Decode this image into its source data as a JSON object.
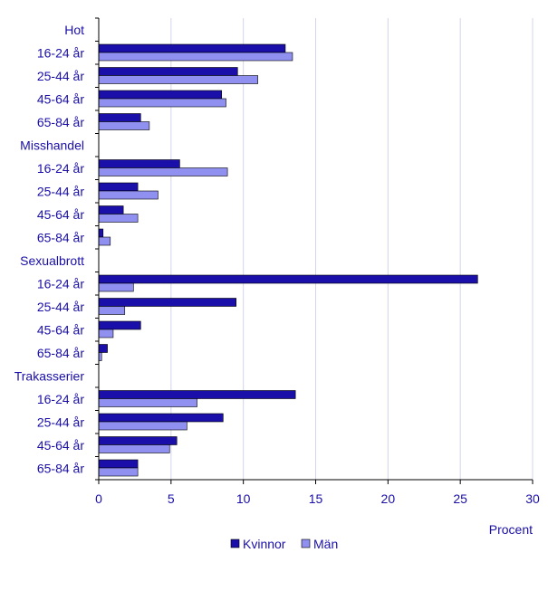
{
  "chart_data": {
    "type": "bar",
    "orientation": "horizontal",
    "categories": [
      "Hot",
      "16-24 år",
      "25-44 år",
      "45-64 år",
      "65-84 år",
      "Misshandel",
      "16-24 år",
      "25-44 år",
      "45-64 år",
      "65-84 år",
      "Sexualbrott",
      "16-24 år",
      "25-44 år",
      "45-64 år",
      "65-84 år",
      "Trakasserier",
      "16-24 år",
      "25-44 år",
      "45-64 år",
      "65-84 år"
    ],
    "series": [
      {
        "name": "Kvinnor",
        "color": "#1a0fa8",
        "values": [
          null,
          12.9,
          9.6,
          8.5,
          2.9,
          null,
          5.6,
          2.7,
          1.7,
          0.3,
          null,
          26.2,
          9.5,
          2.9,
          0.6,
          null,
          13.6,
          8.6,
          5.4,
          2.7
        ]
      },
      {
        "name": "Män",
        "color": "#9090f0",
        "values": [
          null,
          13.4,
          11.0,
          8.8,
          3.5,
          null,
          8.9,
          4.1,
          2.7,
          0.8,
          null,
          2.4,
          1.8,
          1.0,
          0.2,
          null,
          6.8,
          6.1,
          4.9,
          2.7
        ]
      }
    ],
    "xlim": [
      0,
      30
    ],
    "xticks": [
      0,
      5,
      10,
      15,
      20,
      25,
      30
    ],
    "xlabel": "Procent",
    "grid": "vertical",
    "legend_position": "bottom"
  }
}
